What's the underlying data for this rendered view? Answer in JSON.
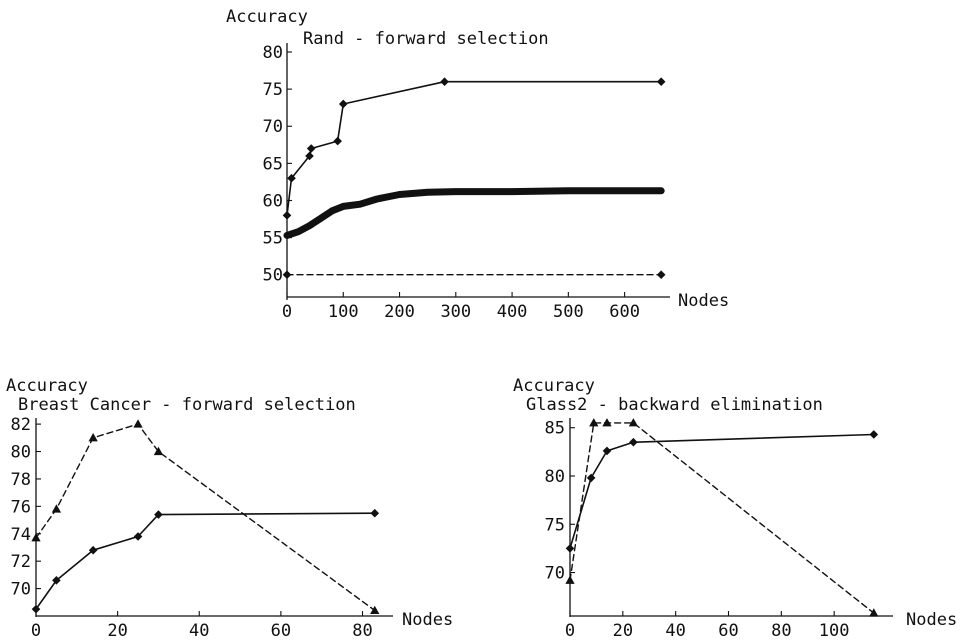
{
  "chart_data": [
    {
      "type": "line",
      "title": "Rand - forward selection",
      "ylabel": "Accuracy",
      "xlabel": "Nodes",
      "xlim": [
        0,
        670
      ],
      "ylim": [
        47,
        80
      ],
      "xticks": [
        0,
        100,
        200,
        300,
        400,
        500,
        600
      ],
      "yticks": [
        50,
        55,
        60,
        65,
        70,
        75,
        80
      ],
      "grid": false,
      "series": [
        {
          "style": "solid",
          "marker": "diamond",
          "color": "#111111",
          "points": [
            [
              0,
              58
            ],
            [
              8,
              63
            ],
            [
              40,
              66
            ],
            [
              43,
              67
            ],
            [
              90,
              68
            ],
            [
              100,
              73
            ],
            [
              280,
              76
            ],
            [
              665,
              76
            ]
          ]
        },
        {
          "style": "thick",
          "marker": "none",
          "color": "#9a9a9a",
          "points": [
            [
              0,
              55.3
            ],
            [
              20,
              55.8
            ],
            [
              40,
              56.6
            ],
            [
              60,
              57.6
            ],
            [
              80,
              58.6
            ],
            [
              100,
              59.2
            ],
            [
              130,
              59.5
            ],
            [
              160,
              60.2
            ],
            [
              200,
              60.8
            ],
            [
              250,
              61.1
            ],
            [
              300,
              61.2
            ],
            [
              400,
              61.2
            ],
            [
              500,
              61.3
            ],
            [
              665,
              61.3
            ]
          ]
        },
        {
          "style": "dashed",
          "marker": "diamond",
          "color": "#111111",
          "points": [
            [
              0,
              50
            ],
            [
              665,
              50
            ]
          ]
        }
      ]
    },
    {
      "type": "line",
      "title": "Breast Cancer - forward selection",
      "ylabel": "Accuracy",
      "xlabel": "Nodes",
      "xlim": [
        0,
        86
      ],
      "ylim": [
        68,
        82.3
      ],
      "xticks": [
        0,
        20,
        40,
        60,
        80
      ],
      "yticks": [
        70,
        72,
        74,
        76,
        78,
        80,
        82
      ],
      "grid": false,
      "series": [
        {
          "style": "solid",
          "marker": "diamond",
          "color": "#111111",
          "points": [
            [
              0,
              68.5
            ],
            [
              5,
              70.6
            ],
            [
              14,
              72.8
            ],
            [
              25,
              73.8
            ],
            [
              30,
              75.4
            ],
            [
              83,
              75.5
            ]
          ]
        },
        {
          "style": "dashed",
          "marker": "triangle",
          "color": "#111111",
          "points": [
            [
              0,
              73.7
            ],
            [
              5,
              75.8
            ],
            [
              14,
              81.0
            ],
            [
              25,
              82.0
            ],
            [
              30,
              80.0
            ],
            [
              83,
              68.4
            ]
          ]
        }
      ]
    },
    {
      "type": "line",
      "title": "Glass2 - backward elimination",
      "ylabel": "Accuracy",
      "xlabel": "Nodes",
      "xlim": [
        0,
        120
      ],
      "ylim": [
        65.5,
        85.8
      ],
      "xticks": [
        0,
        20,
        40,
        60,
        80,
        100
      ],
      "yticks": [
        70,
        75,
        80,
        85
      ],
      "grid": false,
      "series": [
        {
          "style": "solid",
          "marker": "diamond",
          "color": "#111111",
          "points": [
            [
              0,
              72.5
            ],
            [
              8,
              79.8
            ],
            [
              14,
              82.6
            ],
            [
              24,
              83.5
            ],
            [
              115,
              84.3
            ]
          ]
        },
        {
          "style": "dashed",
          "marker": "triangle",
          "color": "#111111",
          "points": [
            [
              0,
              69.2
            ],
            [
              9,
              85.5
            ],
            [
              14,
              85.5
            ],
            [
              24,
              85.5
            ],
            [
              115,
              65.8
            ]
          ]
        }
      ]
    }
  ]
}
